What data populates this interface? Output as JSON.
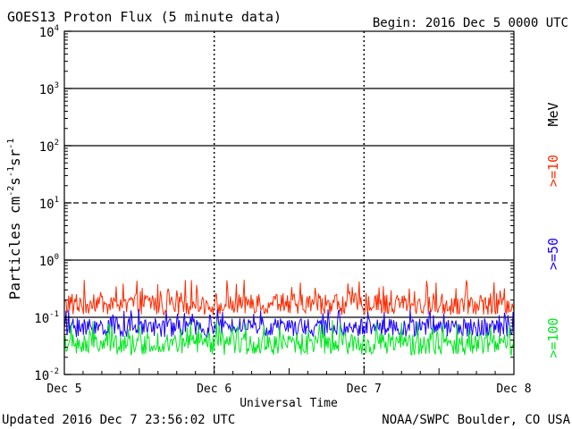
{
  "chart_data": {
    "type": "line",
    "title": "GOES13 Proton Flux (5 minute data)",
    "begin_label": "Begin: 2016 Dec 5 0000 UTC",
    "xlabel": "Universal Time",
    "ylabel_base": "Particles cm",
    "ylabel_units": [
      "-2",
      "s",
      "-1",
      "sr",
      "-1"
    ],
    "yscale": "log",
    "ylim": [
      0.01,
      10000
    ],
    "yticks": [
      {
        "value": 10000,
        "base": "10",
        "exp": "4"
      },
      {
        "value": 1000,
        "base": "10",
        "exp": "3"
      },
      {
        "value": 100,
        "base": "10",
        "exp": "2"
      },
      {
        "value": 10,
        "base": "10",
        "exp": "1"
      },
      {
        "value": 1,
        "base": "10",
        "exp": "0"
      },
      {
        "value": 0.1,
        "base": "10",
        "exp": "-1"
      },
      {
        "value": 0.01,
        "base": "10",
        "exp": "-2"
      }
    ],
    "reference_lines": [
      {
        "value": 1000,
        "style": "solid"
      },
      {
        "value": 100,
        "style": "solid"
      },
      {
        "value": 10,
        "style": "dashed"
      },
      {
        "value": 1,
        "style": "solid"
      },
      {
        "value": 0.1,
        "style": "solid"
      }
    ],
    "xlim_days": [
      0,
      3
    ],
    "xticks": [
      {
        "day": 0,
        "label": "Dec 5"
      },
      {
        "day": 1,
        "label": "Dec 6"
      },
      {
        "day": 2,
        "label": "Dec 7"
      },
      {
        "day": 3,
        "label": "Dec 8"
      }
    ],
    "series": [
      {
        "name": ">=10",
        "color": "#ff2a00",
        "typical": 0.17,
        "min": 0.11,
        "max": 0.45,
        "approx_points_day_x": [
          0,
          0.25,
          0.5,
          0.75,
          1,
          1.25,
          1.5,
          1.75,
          2,
          2.25,
          2.5,
          2.75,
          3
        ],
        "approx_points_y": [
          0.17,
          0.18,
          0.16,
          0.17,
          0.17,
          0.16,
          0.18,
          0.17,
          0.16,
          0.18,
          0.17,
          0.17,
          0.16
        ]
      },
      {
        "name": ">=50",
        "color": "#1a00ff",
        "typical": 0.07,
        "min": 0.045,
        "max": 0.14,
        "approx_points_day_x": [
          0,
          0.25,
          0.5,
          0.75,
          1,
          1.25,
          1.5,
          1.75,
          2,
          2.25,
          2.5,
          2.75,
          3
        ],
        "approx_points_y": [
          0.07,
          0.075,
          0.07,
          0.072,
          0.07,
          0.07,
          0.075,
          0.07,
          0.05,
          0.075,
          0.07,
          0.072,
          0.07
        ]
      },
      {
        "name": ">=100",
        "color": "#00e81e",
        "typical": 0.035,
        "min": 0.022,
        "max": 0.09,
        "approx_points_day_x": [
          0,
          0.25,
          0.5,
          0.75,
          1,
          1.25,
          1.5,
          1.75,
          2,
          2.25,
          2.5,
          2.75,
          3
        ],
        "approx_points_y": [
          0.035,
          0.036,
          0.034,
          0.035,
          0.035,
          0.034,
          0.036,
          0.035,
          0.034,
          0.036,
          0.035,
          0.035,
          0.034
        ]
      }
    ],
    "unit_label": "MeV",
    "grid": false,
    "legend_placement": "right (vertical)"
  },
  "footer": {
    "updated": "Updated 2016 Dec  7 23:56:02 UTC",
    "credit": "NOAA/SWPC Boulder, CO USA"
  }
}
